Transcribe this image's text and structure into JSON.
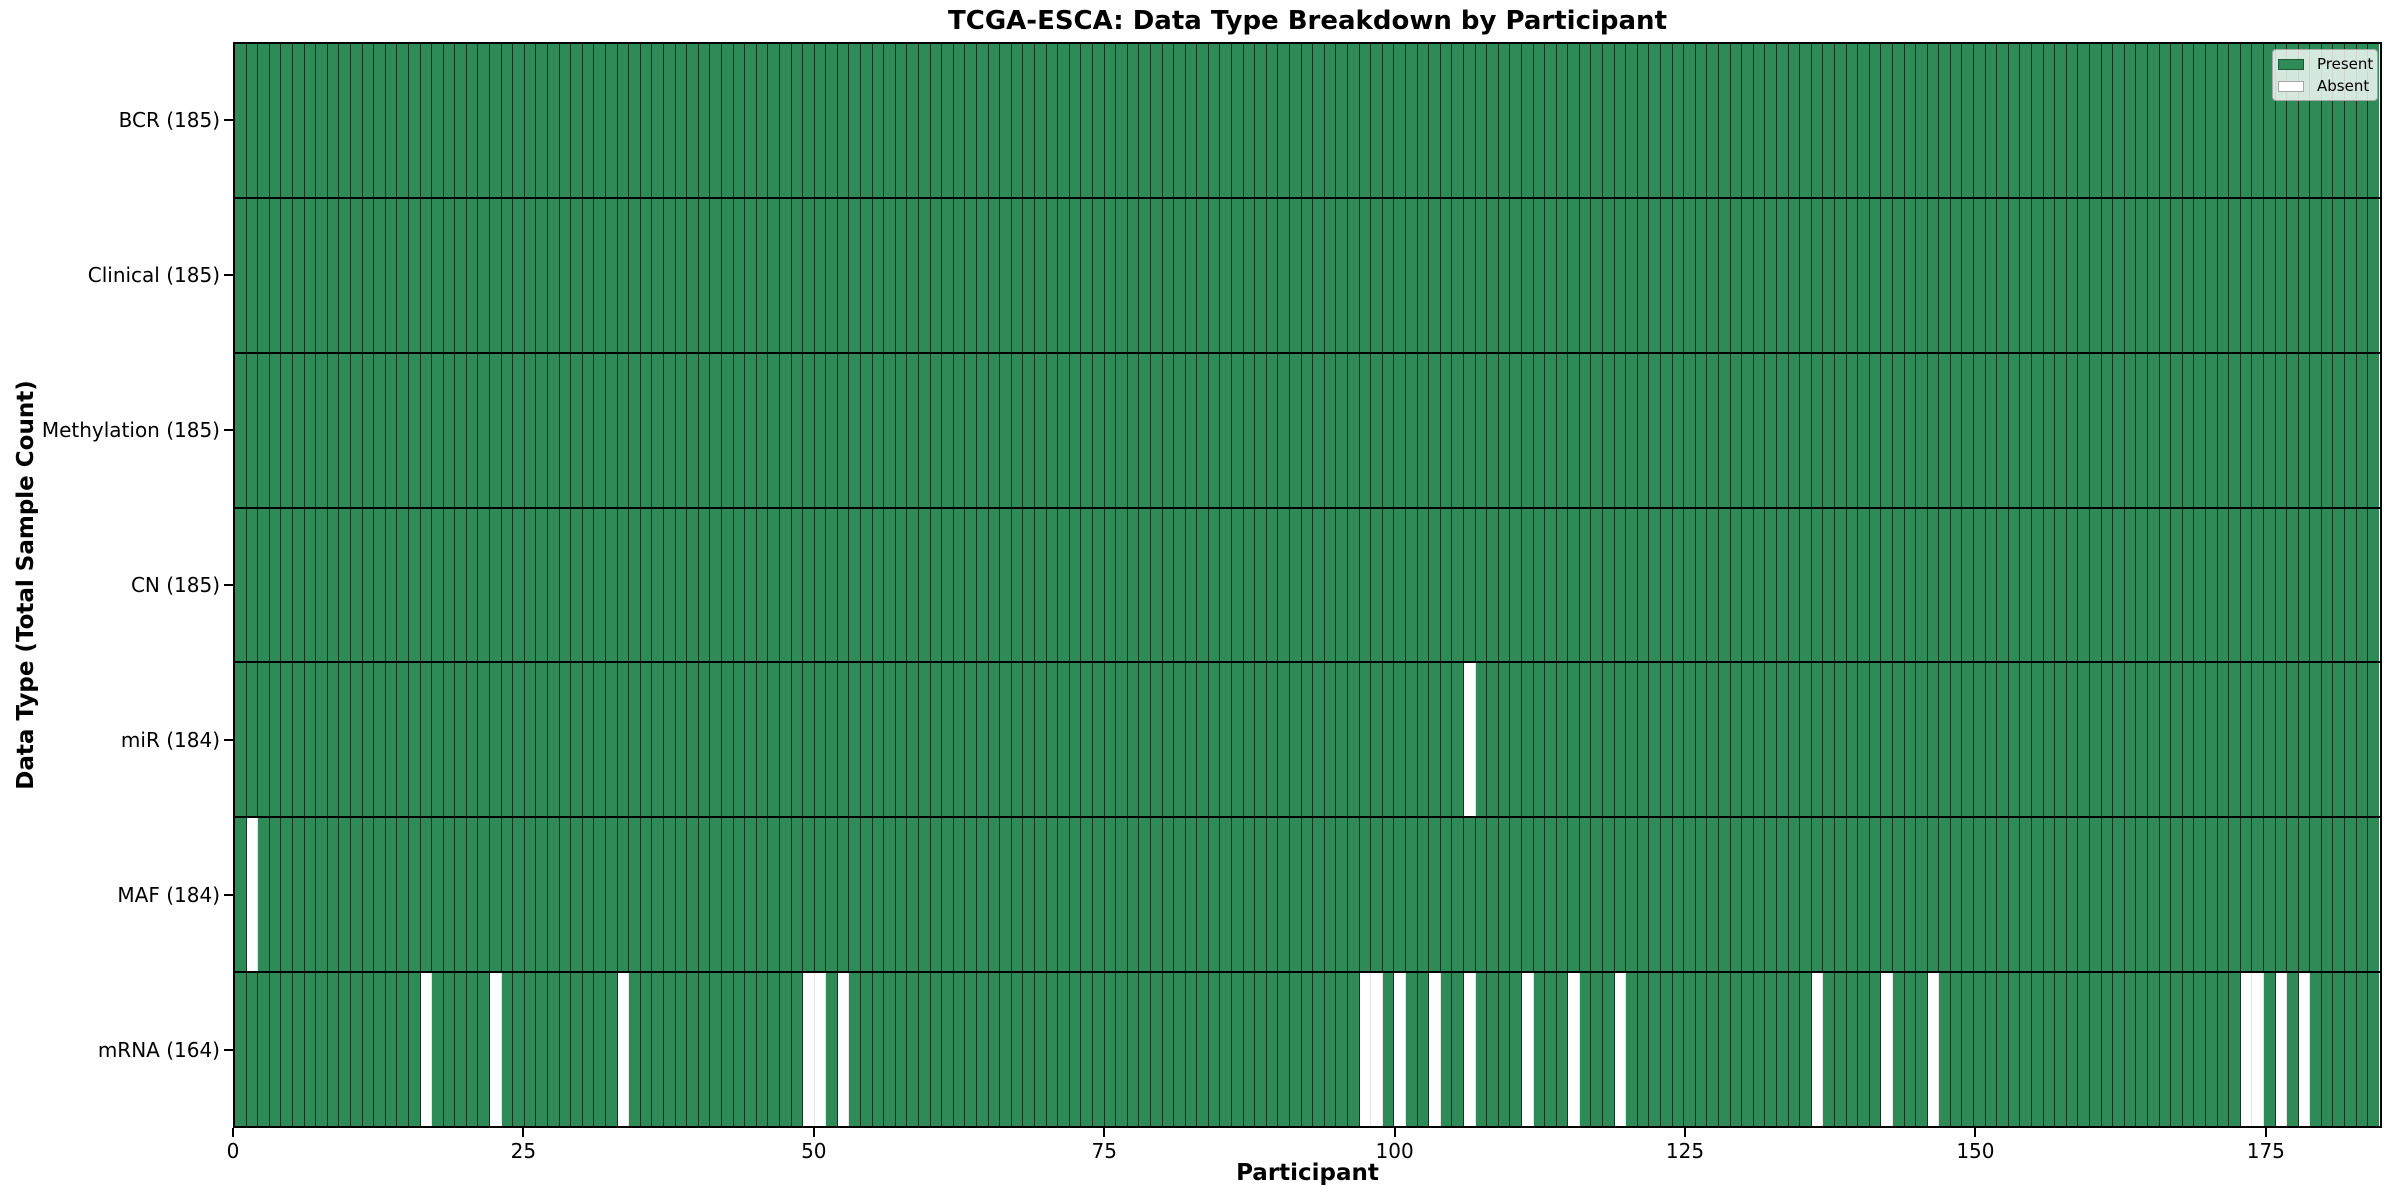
{
  "title": "TCGA-ESCA: Data Type Breakdown by Participant",
  "chart_data": {
    "type": "heatmap",
    "title": "TCGA-ESCA: Data Type Breakdown by Participant",
    "xlabel": "Participant",
    "ylabel": "Data Type (Total Sample Count)",
    "n_participants": 185,
    "x_ticks": [
      0,
      25,
      50,
      75,
      100,
      125,
      150,
      175
    ],
    "grid": false,
    "legend_position": "upper right",
    "legend": [
      {
        "label": "Present",
        "color": "#2e8b57"
      },
      {
        "label": "Absent",
        "color": "#ffffff"
      }
    ],
    "colors": {
      "present": "#2e8b57",
      "absent": "#ffffff",
      "cell_edge": "#123f28",
      "row_separator": "#000000"
    },
    "rows": [
      {
        "name": "BCR",
        "label": "BCR (185)",
        "present_count": 185,
        "absent_indices": []
      },
      {
        "name": "Clinical",
        "label": "Clinical (185)",
        "present_count": 185,
        "absent_indices": []
      },
      {
        "name": "Methylation",
        "label": "Methylation (185)",
        "present_count": 185,
        "absent_indices": []
      },
      {
        "name": "CN",
        "label": "CN (185)",
        "present_count": 185,
        "absent_indices": []
      },
      {
        "name": "miR",
        "label": "miR (184)",
        "present_count": 184,
        "absent_indices": [
          106
        ]
      },
      {
        "name": "MAF",
        "label": "MAF (184)",
        "present_count": 184,
        "absent_indices": [
          1
        ]
      },
      {
        "name": "mRNA",
        "label": "mRNA (164)",
        "present_count": 164,
        "absent_indices": [
          16,
          22,
          33,
          49,
          50,
          52,
          97,
          98,
          100,
          103,
          106,
          111,
          115,
          119,
          136,
          142,
          146,
          173,
          174,
          176,
          178
        ]
      }
    ]
  }
}
